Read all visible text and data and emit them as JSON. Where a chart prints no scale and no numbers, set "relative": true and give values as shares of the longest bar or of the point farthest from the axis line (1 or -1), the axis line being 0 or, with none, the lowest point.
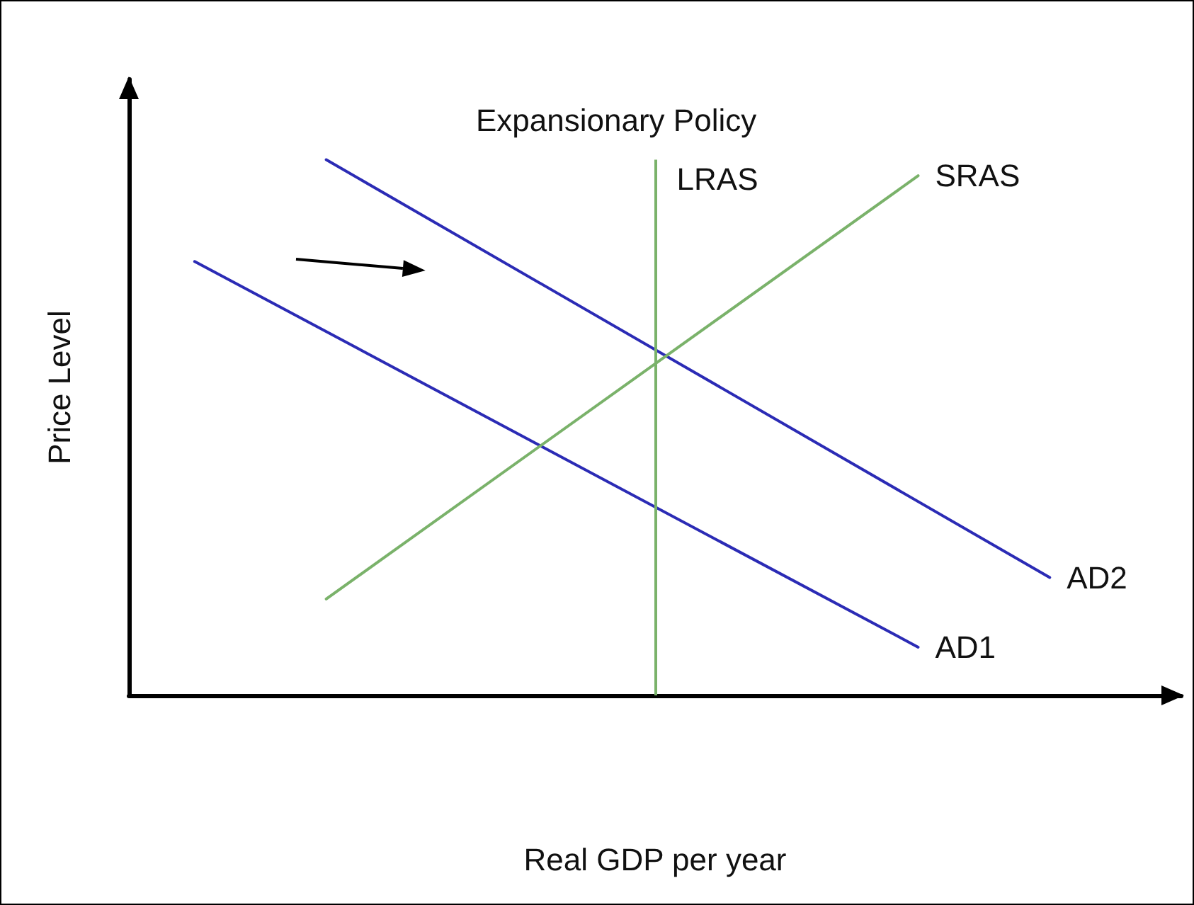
{
  "chart_data": {
    "type": "line",
    "title": "Expansionary Policy",
    "xlabel": "Real GDP per year",
    "ylabel": "Price Level",
    "relative": true,
    "marker": "none",
    "line_style": "solid",
    "categories": [
      null,
      null,
      null,
      null,
      null,
      null,
      null,
      null,
      null,
      null,
      null,
      null,
      null,
      null,
      null,
      null,
      null
    ],
    "series": [
      {
        "name": "AD1",
        "color": "#2b2bb5",
        "values": [
          null,
          0.81,
          null,
          null,
          null,
          null,
          null,
          null,
          null,
          null,
          null,
          null,
          0.09,
          null,
          null,
          null,
          null
        ]
      },
      {
        "name": "AD2",
        "color": "#2b2bb5",
        "values": [
          null,
          null,
          null,
          1,
          null,
          null,
          null,
          null,
          null,
          null,
          null,
          null,
          null,
          null,
          0.22,
          null,
          null
        ]
      },
      {
        "name": "SRAS",
        "color": "#7ab26a",
        "values": [
          null,
          null,
          null,
          0.18,
          null,
          null,
          null,
          null,
          null,
          null,
          null,
          null,
          0.97,
          null,
          null,
          null,
          null
        ]
      }
    ],
    "annotations": [
      "LRAS"
    ]
  }
}
